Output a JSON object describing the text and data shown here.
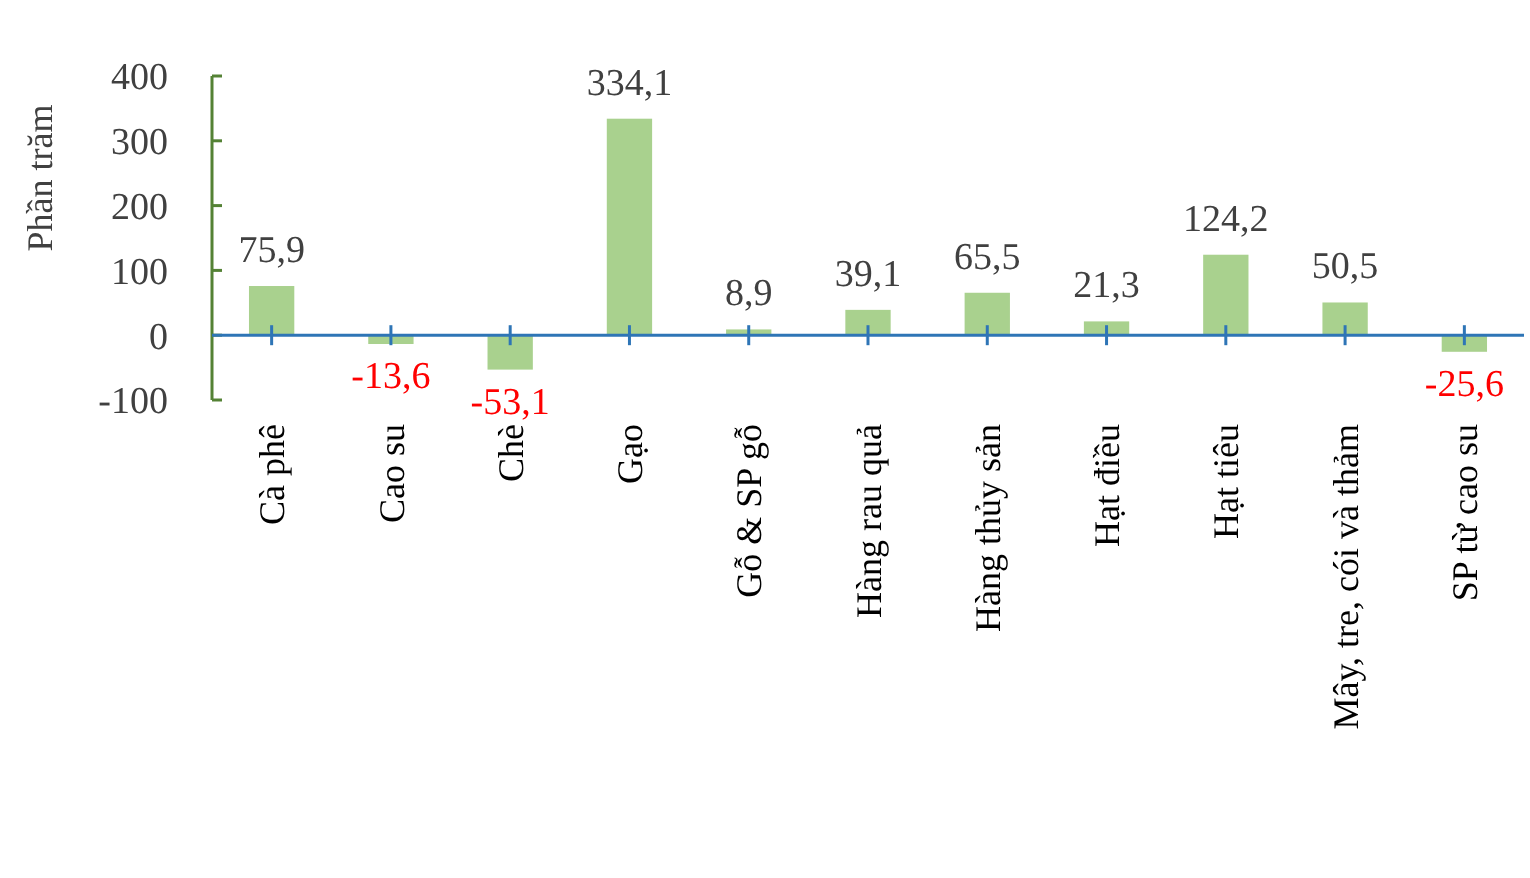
{
  "chart_data": {
    "type": "bar",
    "ylabel": "Phần trăm",
    "categories": [
      "Cà phê",
      "Cao su",
      "Chè",
      "Gạo",
      "Gỗ & SP gỗ",
      "Hàng rau quả",
      "Hàng thủy sản",
      "Hạt điều",
      "Hạt tiêu",
      "Mây, tre, cói và thảm",
      "SP từ cao su"
    ],
    "values": [
      75.9,
      -13.6,
      -53.1,
      334.1,
      8.9,
      39.1,
      65.5,
      21.3,
      124.2,
      50.5,
      -25.6
    ],
    "value_labels": [
      "75,9",
      "-13,6",
      "-53,1",
      "334,1",
      "8,9",
      "39,1",
      "65,5",
      "21,3",
      "124,2",
      "50,5",
      "-25,6"
    ],
    "color": "#a9d18e",
    "ylim": [
      -100,
      400
    ],
    "yticks": [
      -100,
      0,
      100,
      200,
      300,
      400
    ],
    "grid": false
  }
}
